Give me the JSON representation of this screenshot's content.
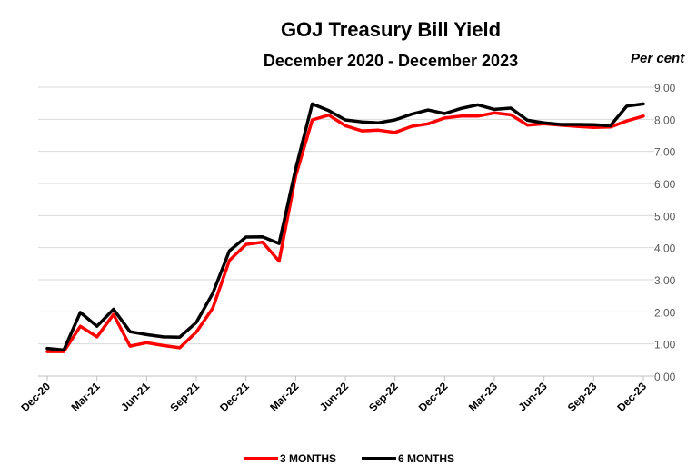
{
  "chart_data": {
    "type": "line",
    "title": "GOJ Treasury Bill Yield",
    "subtitle": "December 2020 - December 2023",
    "unit_label": "Per cent",
    "x": [
      "Dec-20",
      "Jan-21",
      "Feb-21",
      "Mar-21",
      "Apr-21",
      "May-21",
      "Jun-21",
      "Jul-21",
      "Aug-21",
      "Sep-21",
      "Oct-21",
      "Nov-21",
      "Dec-21",
      "Jan-22",
      "Feb-22",
      "Mar-22",
      "Apr-22",
      "May-22",
      "Jun-22",
      "Jul-22",
      "Aug-22",
      "Sep-22",
      "Oct-22",
      "Nov-22",
      "Dec-22",
      "Jan-23",
      "Feb-23",
      "Mar-23",
      "Apr-23",
      "May-23",
      "Jun-23",
      "Jul-23",
      "Aug-23",
      "Sep-23",
      "Oct-23",
      "Nov-23",
      "Dec-23"
    ],
    "x_tick_labels": [
      "Dec-20",
      "Mar-21",
      "Jun-21",
      "Sep-21",
      "Dec-21",
      "Mar-22",
      "Jun-22",
      "Sep-22",
      "Dec-22",
      "Mar-23",
      "Jun-23",
      "Sep-23",
      "Dec-23"
    ],
    "y_tick_labels": [
      "0.00",
      "1.00",
      "2.00",
      "3.00",
      "4.00",
      "5.00",
      "6.00",
      "7.00",
      "8.00",
      "9.00"
    ],
    "ylim": [
      0,
      9
    ],
    "grid": "horizontal",
    "legend_position": "bottom",
    "series": [
      {
        "name": "3 MONTHS",
        "color": "#ff0000",
        "values": [
          0.76,
          0.76,
          1.55,
          1.22,
          1.92,
          0.93,
          1.04,
          0.95,
          0.88,
          1.37,
          2.12,
          3.6,
          4.1,
          4.17,
          3.58,
          6.23,
          7.98,
          8.13,
          7.8,
          7.64,
          7.66,
          7.59,
          7.78,
          7.86,
          8.04,
          8.1,
          8.1,
          8.2,
          8.14,
          7.82,
          7.86,
          7.82,
          7.78,
          7.75,
          7.76,
          7.95,
          8.1
        ]
      },
      {
        "name": "6 MONTHS",
        "color": "#000000",
        "values": [
          0.86,
          0.81,
          1.98,
          1.55,
          2.08,
          1.38,
          1.29,
          1.22,
          1.21,
          1.67,
          2.58,
          3.9,
          4.33,
          4.34,
          4.13,
          6.45,
          8.48,
          8.27,
          7.98,
          7.92,
          7.89,
          7.98,
          8.16,
          8.29,
          8.18,
          8.34,
          8.45,
          8.31,
          8.35,
          7.97,
          7.89,
          7.84,
          7.84,
          7.83,
          7.8,
          8.41,
          8.48
        ]
      }
    ]
  }
}
